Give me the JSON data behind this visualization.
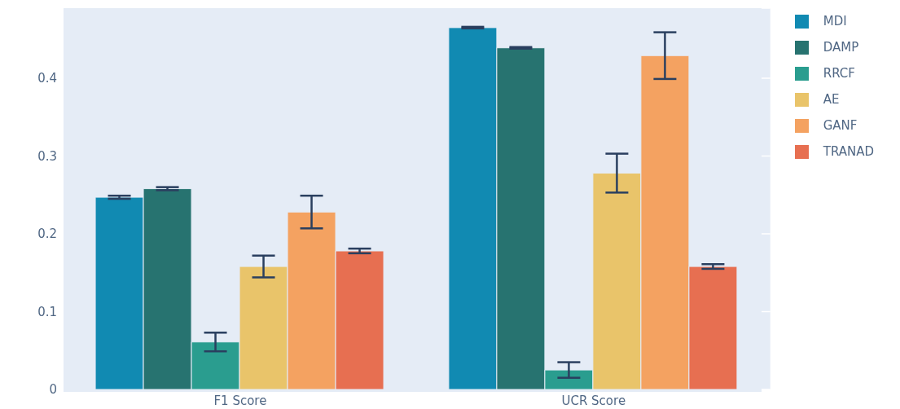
{
  "chart_data": {
    "type": "bar",
    "categories": [
      "F1 Score",
      "UCR Score"
    ],
    "series": [
      {
        "name": "MDI",
        "color": "#118ab2",
        "values": [
          0.247,
          0.465
        ],
        "errors": [
          0.002,
          0.001
        ]
      },
      {
        "name": "DAMP",
        "color": "#277370",
        "values": [
          0.258,
          0.439
        ],
        "errors": [
          0.002,
          0.001
        ]
      },
      {
        "name": "RRCF",
        "color": "#2a9d8f",
        "values": [
          0.061,
          0.025
        ],
        "errors": [
          0.012,
          0.01
        ]
      },
      {
        "name": "AE",
        "color": "#e9c46a",
        "values": [
          0.158,
          0.278
        ],
        "errors": [
          0.014,
          0.025
        ]
      },
      {
        "name": "GANF",
        "color": "#f4a261",
        "values": [
          0.228,
          0.429
        ],
        "errors": [
          0.021,
          0.03
        ]
      },
      {
        "name": "TRANAD",
        "color": "#e76f51",
        "values": [
          0.178,
          0.158
        ],
        "errors": [
          0.003,
          0.003
        ]
      }
    ],
    "ylim": [
      0,
      0.49
    ],
    "yticks": [
      0,
      0.1,
      0.2,
      0.3,
      0.4
    ],
    "grid": "y",
    "legend": "top right"
  }
}
